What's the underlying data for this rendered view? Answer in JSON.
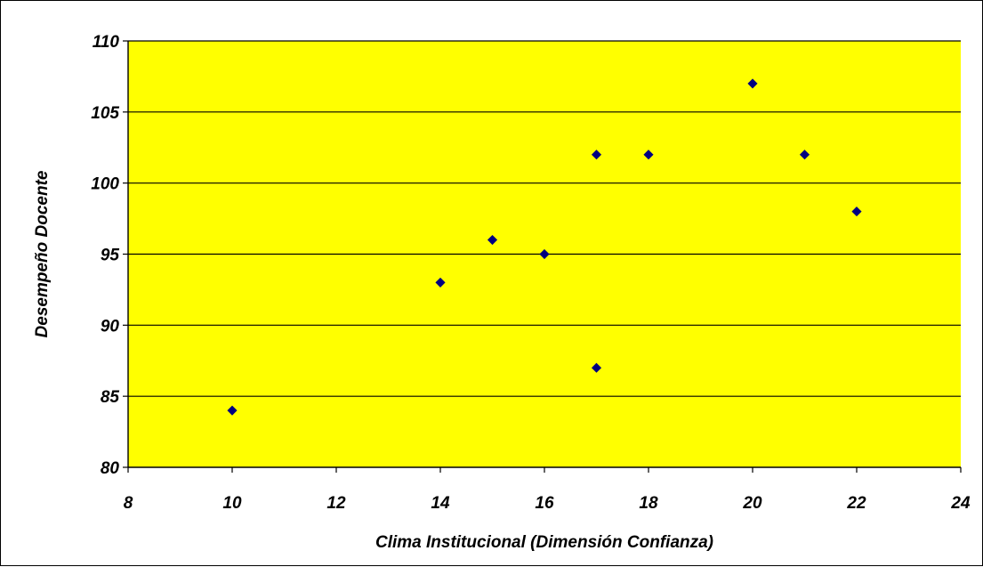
{
  "chart_data": {
    "type": "scatter",
    "title": "",
    "xlabel": "Clima Institucional (Dimensión Confianza)",
    "ylabel": "Desempeño Docente",
    "xlim": [
      8,
      24
    ],
    "ylim": [
      80,
      110
    ],
    "x_ticks": [
      8,
      10,
      12,
      14,
      16,
      18,
      20,
      22,
      24
    ],
    "y_ticks": [
      80,
      85,
      90,
      95,
      100,
      105,
      110
    ],
    "grid": "horizontal",
    "legend": "none",
    "colors": {
      "plot_background": "#FFFF00",
      "marker": "#000080",
      "gridline": "#000000"
    },
    "marker": "diamond",
    "points": [
      {
        "x": 10,
        "y": 84
      },
      {
        "x": 14,
        "y": 93
      },
      {
        "x": 15,
        "y": 96
      },
      {
        "x": 16,
        "y": 95
      },
      {
        "x": 17,
        "y": 102
      },
      {
        "x": 17,
        "y": 87
      },
      {
        "x": 18,
        "y": 102
      },
      {
        "x": 20,
        "y": 107
      },
      {
        "x": 21,
        "y": 102
      },
      {
        "x": 22,
        "y": 98
      }
    ]
  }
}
